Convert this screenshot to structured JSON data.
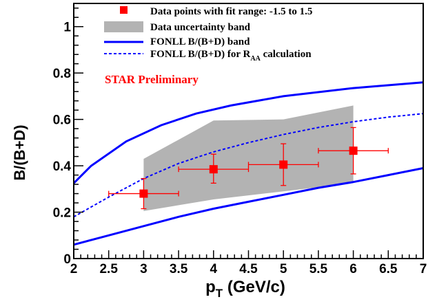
{
  "chart_data": {
    "type": "scatter",
    "title": "",
    "xlabel": "p",
    "xlabel_sub": "T",
    "xlabel_unit": " (GeV/c)",
    "ylabel": "B/(B+D)",
    "xlim": [
      2,
      7
    ],
    "ylim": [
      0,
      1.1
    ],
    "x_ticks": [
      "2",
      "2.5",
      "3",
      "3.5",
      "4",
      "4.5",
      "5",
      "5.5",
      "6",
      "6.5",
      "7"
    ],
    "y_ticks": [
      "0",
      "0.2",
      "0.4",
      "0.6",
      "0.8",
      "1"
    ],
    "annotation": "STAR Preliminary",
    "legend": {
      "placement": "top",
      "entries": [
        {
          "label": "Data points with fit range: -1.5 to 1.5",
          "marker": "square"
        },
        {
          "label": "Data uncertainty band",
          "marker": "band"
        },
        {
          "label": "FONLL B/(B+D) band",
          "marker": "solid-line"
        },
        {
          "label": "FONLL B/(B+D) for R",
          "label_sub": "AA",
          "label_tail": " calculation",
          "marker": "dashed-line"
        }
      ]
    },
    "data_points": {
      "name": "Data points with fit range: -1.5 to 1.5",
      "points": [
        {
          "x": 3,
          "y": 0.28,
          "xerr": [
            0.5,
            0.5
          ],
          "yerr": [
            0.065,
            0.065
          ]
        },
        {
          "x": 4,
          "y": 0.385,
          "xerr": [
            0.5,
            0.5
          ],
          "yerr": [
            0.06,
            0.065
          ]
        },
        {
          "x": 5,
          "y": 0.405,
          "xerr": [
            0.5,
            0.5
          ],
          "yerr": [
            0.09,
            0.09
          ]
        },
        {
          "x": 6,
          "y": 0.465,
          "xerr": [
            0.5,
            0.5
          ],
          "yerr": [
            0.1,
            0.1
          ]
        }
      ]
    },
    "uncertainty_band": {
      "name": "Data uncertainty band",
      "upper": [
        [
          3,
          0.43
        ],
        [
          4,
          0.595
        ],
        [
          5,
          0.6
        ],
        [
          6,
          0.66
        ]
      ],
      "lower": [
        [
          3,
          0.205
        ],
        [
          4,
          0.255
        ],
        [
          5,
          0.29
        ],
        [
          6,
          0.325
        ]
      ]
    },
    "fonll_upper": {
      "name": "FONLL B/(B+D) band",
      "points": [
        [
          2,
          0.325
        ],
        [
          2.25,
          0.4
        ],
        [
          2.75,
          0.505
        ],
        [
          3.25,
          0.575
        ],
        [
          3.75,
          0.625
        ],
        [
          4.25,
          0.66
        ],
        [
          5,
          0.7
        ],
        [
          6,
          0.735
        ],
        [
          7,
          0.76
        ]
      ]
    },
    "fonll_lower": {
      "name": "FONLL B/(B+D) band",
      "points": [
        [
          2,
          0.06
        ],
        [
          2.5,
          0.1
        ],
        [
          3,
          0.14
        ],
        [
          3.5,
          0.18
        ],
        [
          4,
          0.215
        ],
        [
          4.5,
          0.245
        ],
        [
          5,
          0.275
        ],
        [
          5.5,
          0.305
        ],
        [
          6,
          0.33
        ],
        [
          6.5,
          0.36
        ],
        [
          7,
          0.39
        ]
      ]
    },
    "fonll_raa": {
      "name": "FONLL B/(B+D) for RAA calculation",
      "points": [
        [
          2,
          0.18
        ],
        [
          2.5,
          0.265
        ],
        [
          3,
          0.345
        ],
        [
          3.5,
          0.41
        ],
        [
          4,
          0.46
        ],
        [
          4.5,
          0.5
        ],
        [
          5,
          0.535
        ],
        [
          5.5,
          0.565
        ],
        [
          6,
          0.59
        ],
        [
          6.5,
          0.61
        ],
        [
          7,
          0.625
        ]
      ]
    },
    "colors": {
      "points": "#ff0000",
      "band": "#b3b3b3",
      "fonll": "#0000ff",
      "annotation": "#ff0000",
      "frame": "#000000"
    }
  }
}
